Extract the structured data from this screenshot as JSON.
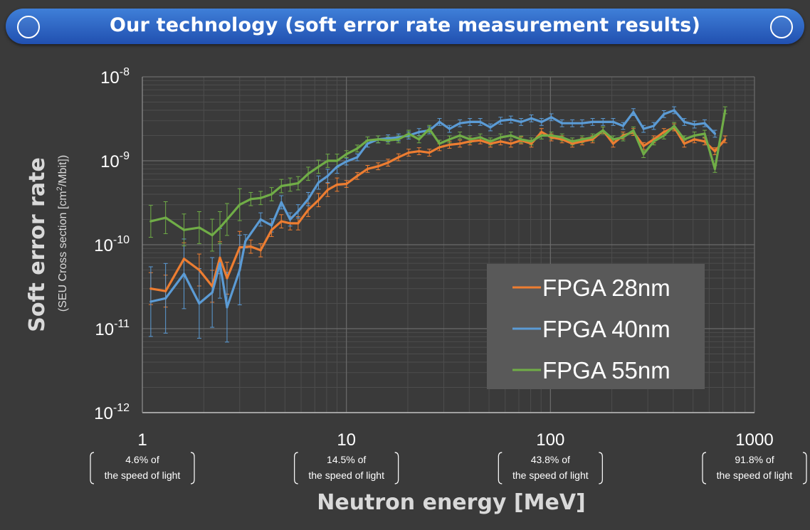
{
  "banner": {
    "title": "Our technology (soft error rate measurement results)"
  },
  "x_speed_labels": [
    {
      "x": 1,
      "lines": [
        "4.6% of",
        "the speed of light"
      ]
    },
    {
      "x": 10,
      "lines": [
        "14.5% of",
        "the speed of light"
      ]
    },
    {
      "x": 100,
      "lines": [
        "43.8% of",
        "the speed of light"
      ]
    },
    {
      "x": 1000,
      "lines": [
        "91.8% of",
        "the speed of light"
      ]
    }
  ],
  "colors": {
    "background": "#3a3a3a",
    "banner": "#2f66c8",
    "grid_major": "#6b6b6b",
    "grid_minor": "#4d4d4d",
    "legend_bg": "#595959"
  },
  "chart_data": {
    "type": "line",
    "xlabel": "Neutron energy [MeV]",
    "ylabel": "Soft error rate",
    "ylabel_sub": "(SEU Cross section [cm",
    "ylabel_sub_sup": "2",
    "ylabel_sub_end": "/Mbit])",
    "x_scale": "log",
    "y_scale": "log",
    "xlim": [
      1,
      1000
    ],
    "ylim": [
      1e-12,
      1e-08
    ],
    "x_ticks": [
      {
        "value": 1,
        "label": "1"
      },
      {
        "value": 10,
        "label": "10"
      },
      {
        "value": 100,
        "label": "100"
      },
      {
        "value": 1000,
        "label": "1000"
      }
    ],
    "y_ticks": [
      {
        "value": 1e-12,
        "exp": "-12"
      },
      {
        "value": 1e-11,
        "exp": "-11"
      },
      {
        "value": 1e-10,
        "exp": "-10"
      },
      {
        "value": 1e-09,
        "exp": "-9"
      },
      {
        "value": 1e-08,
        "exp": "-8"
      }
    ],
    "y_tick_base": "10",
    "grid": true,
    "legend": "center-right",
    "series": [
      {
        "name": "FPGA 28nm",
        "color": "#ed7d31",
        "points": [
          [
            1.1,
            3e-11
          ],
          [
            1.3,
            2.8e-11
          ],
          [
            1.6,
            6.8e-11
          ],
          [
            1.9,
            5e-11
          ],
          [
            2.2,
            3.2e-11
          ],
          [
            2.4,
            7e-11
          ],
          [
            2.6,
            4e-11
          ],
          [
            3.0,
            9.3e-11
          ],
          [
            3.4,
            9.5e-11
          ],
          [
            3.8,
            8.6e-11
          ],
          [
            4.3,
            1.5e-10
          ],
          [
            4.8,
            1.9e-10
          ],
          [
            5.3,
            1.8e-10
          ],
          [
            5.8,
            1.8e-10
          ],
          [
            6.5,
            2.6e-10
          ],
          [
            7.3,
            3.4e-10
          ],
          [
            8.1,
            4.5e-10
          ],
          [
            9.0,
            5.2e-10
          ],
          [
            10,
            5.3e-10
          ],
          [
            11.3,
            6.6e-10
          ],
          [
            12.7,
            8e-10
          ],
          [
            14.3,
            8.6e-10
          ],
          [
            16,
            9.5e-10
          ],
          [
            18,
            1.1e-09
          ],
          [
            20.2,
            1.25e-09
          ],
          [
            22.7,
            1.3e-09
          ],
          [
            25.5,
            1.25e-09
          ],
          [
            28.6,
            1.45e-09
          ],
          [
            32,
            1.55e-09
          ],
          [
            36,
            1.6e-09
          ],
          [
            40.3,
            1.7e-09
          ],
          [
            45.3,
            1.75e-09
          ],
          [
            50.8,
            1.6e-09
          ],
          [
            57,
            1.7e-09
          ],
          [
            64,
            1.6e-09
          ],
          [
            71.8,
            1.75e-09
          ],
          [
            80.6,
            1.6e-09
          ],
          [
            90.4,
            2.2e-09
          ],
          [
            101,
            1.9e-09
          ],
          [
            114,
            1.8e-09
          ],
          [
            128,
            1.6e-09
          ],
          [
            143,
            1.7e-09
          ],
          [
            161,
            1.8e-09
          ],
          [
            181,
            2.3e-09
          ],
          [
            203,
            1.6e-09
          ],
          [
            227,
            2e-09
          ],
          [
            255,
            2.2e-09
          ],
          [
            286,
            1.5e-09
          ],
          [
            321,
            1.8e-09
          ],
          [
            360,
            2.2e-09
          ],
          [
            404,
            2.5e-09
          ],
          [
            453,
            1.6e-09
          ],
          [
            508,
            1.8e-09
          ],
          [
            570,
            1.7e-09
          ],
          [
            640,
            1.3e-09
          ],
          [
            718,
            1.8e-09
          ]
        ]
      },
      {
        "name": "FPGA 40nm",
        "color": "#5b9bd5",
        "points": [
          [
            1.1,
            2.1e-11
          ],
          [
            1.3,
            2.3e-11
          ],
          [
            1.6,
            4.5e-11
          ],
          [
            1.9,
            2e-11
          ],
          [
            2.2,
            2.7e-11
          ],
          [
            2.4,
            6e-11
          ],
          [
            2.6,
            1.8e-11
          ],
          [
            3.0,
            5e-11
          ],
          [
            3.2,
            1.1e-10
          ],
          [
            3.8,
            2e-10
          ],
          [
            4.3,
            1.7e-10
          ],
          [
            4.8,
            3.2e-10
          ],
          [
            5.3,
            2e-10
          ],
          [
            5.8,
            2.5e-10
          ],
          [
            6.5,
            3.5e-10
          ],
          [
            7.3,
            5.5e-10
          ],
          [
            8.1,
            6.6e-10
          ],
          [
            9.0,
            8.5e-10
          ],
          [
            10,
            9.8e-10
          ],
          [
            11.3,
            1.1e-09
          ],
          [
            12.7,
            1.6e-09
          ],
          [
            14.3,
            1.8e-09
          ],
          [
            16,
            1.85e-09
          ],
          [
            18,
            1.9e-09
          ],
          [
            20.2,
            2e-09
          ],
          [
            22.7,
            2.2e-09
          ],
          [
            25.5,
            2.3e-09
          ],
          [
            28.6,
            2.9e-09
          ],
          [
            32,
            2.4e-09
          ],
          [
            36,
            2.8e-09
          ],
          [
            40.3,
            2.9e-09
          ],
          [
            45.3,
            2.9e-09
          ],
          [
            50.8,
            2.5e-09
          ],
          [
            57,
            3e-09
          ],
          [
            64,
            3.1e-09
          ],
          [
            71.8,
            2.9e-09
          ],
          [
            80.6,
            3.2e-09
          ],
          [
            90.4,
            2.9e-09
          ],
          [
            101,
            3.3e-09
          ],
          [
            114,
            2.8e-09
          ],
          [
            128,
            2.8e-09
          ],
          [
            143,
            2.8e-09
          ],
          [
            161,
            2.9e-09
          ],
          [
            181,
            2.9e-09
          ],
          [
            203,
            2.9e-09
          ],
          [
            227,
            2.6e-09
          ],
          [
            255,
            3.8e-09
          ],
          [
            286,
            2.4e-09
          ],
          [
            321,
            2.6e-09
          ],
          [
            360,
            3.6e-09
          ],
          [
            404,
            4e-09
          ],
          [
            453,
            2.9e-09
          ],
          [
            508,
            2.7e-09
          ],
          [
            570,
            2.8e-09
          ],
          [
            640,
            2.1e-09
          ]
        ]
      },
      {
        "name": "FPGA 55nm",
        "color": "#70ad47",
        "points": [
          [
            1.1,
            1.9e-10
          ],
          [
            1.3,
            2.1e-10
          ],
          [
            1.6,
            1.5e-10
          ],
          [
            1.9,
            1.6e-10
          ],
          [
            2.2,
            1.3e-10
          ],
          [
            2.4,
            1.6e-10
          ],
          [
            2.6,
            2e-10
          ],
          [
            3.0,
            3e-10
          ],
          [
            3.4,
            3.5e-10
          ],
          [
            3.8,
            3.6e-10
          ],
          [
            4.3,
            4e-10
          ],
          [
            4.8,
            5e-10
          ],
          [
            5.3,
            5.2e-10
          ],
          [
            5.8,
            5.4e-10
          ],
          [
            6.5,
            7e-10
          ],
          [
            7.3,
            8.5e-10
          ],
          [
            8.1,
            1e-09
          ],
          [
            9.0,
            1e-09
          ],
          [
            10,
            1.2e-09
          ],
          [
            11.3,
            1.4e-09
          ],
          [
            12.7,
            1.75e-09
          ],
          [
            14.3,
            1.8e-09
          ],
          [
            16,
            1.75e-09
          ],
          [
            18,
            1.8e-09
          ],
          [
            20.2,
            2.1e-09
          ],
          [
            22.7,
            1.8e-09
          ],
          [
            25.5,
            2.4e-09
          ],
          [
            28.6,
            1.6e-09
          ],
          [
            32,
            1.8e-09
          ],
          [
            36,
            2e-09
          ],
          [
            40.3,
            1.8e-09
          ],
          [
            45.3,
            1.9e-09
          ],
          [
            50.8,
            1.7e-09
          ],
          [
            57,
            1.9e-09
          ],
          [
            64,
            2e-09
          ],
          [
            71.8,
            1.8e-09
          ],
          [
            80.6,
            1.7e-09
          ],
          [
            90.4,
            2e-09
          ],
          [
            101,
            2e-09
          ],
          [
            114,
            1.9e-09
          ],
          [
            128,
            1.7e-09
          ],
          [
            143,
            1.8e-09
          ],
          [
            161,
            1.9e-09
          ],
          [
            181,
            2.3e-09
          ],
          [
            203,
            1.8e-09
          ],
          [
            227,
            1.9e-09
          ],
          [
            255,
            2.3e-09
          ],
          [
            286,
            1.2e-09
          ],
          [
            321,
            1.7e-09
          ],
          [
            360,
            2e-09
          ],
          [
            404,
            2.6e-09
          ],
          [
            453,
            1.8e-09
          ],
          [
            508,
            2e-09
          ],
          [
            570,
            2.1e-09
          ],
          [
            640,
            8e-10
          ],
          [
            718,
            4e-09
          ]
        ]
      }
    ]
  }
}
